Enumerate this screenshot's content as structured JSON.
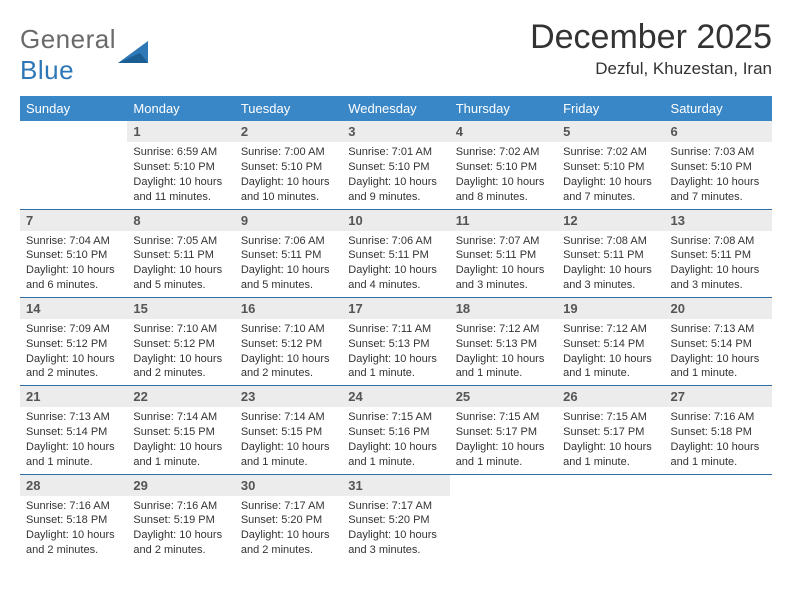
{
  "logo": {
    "word1": "General",
    "word2": "Blue"
  },
  "title": "December 2025",
  "location": "Dezful, Khuzestan, Iran",
  "colors": {
    "header_bg": "#3a87c7",
    "header_text": "#ffffff",
    "daynum_bg": "#ececec",
    "daynum_text": "#555555",
    "divider": "#2f6fa3",
    "logo_gray": "#6a6a6a",
    "logo_blue": "#2f78b7"
  },
  "weekdays": [
    "Sunday",
    "Monday",
    "Tuesday",
    "Wednesday",
    "Thursday",
    "Friday",
    "Saturday"
  ],
  "weeks": [
    [
      {
        "empty": true
      },
      {
        "n": "1",
        "sr": "Sunrise: 6:59 AM",
        "ss": "Sunset: 5:10 PM",
        "dl": "Daylight: 10 hours and 11 minutes."
      },
      {
        "n": "2",
        "sr": "Sunrise: 7:00 AM",
        "ss": "Sunset: 5:10 PM",
        "dl": "Daylight: 10 hours and 10 minutes."
      },
      {
        "n": "3",
        "sr": "Sunrise: 7:01 AM",
        "ss": "Sunset: 5:10 PM",
        "dl": "Daylight: 10 hours and 9 minutes."
      },
      {
        "n": "4",
        "sr": "Sunrise: 7:02 AM",
        "ss": "Sunset: 5:10 PM",
        "dl": "Daylight: 10 hours and 8 minutes."
      },
      {
        "n": "5",
        "sr": "Sunrise: 7:02 AM",
        "ss": "Sunset: 5:10 PM",
        "dl": "Daylight: 10 hours and 7 minutes."
      },
      {
        "n": "6",
        "sr": "Sunrise: 7:03 AM",
        "ss": "Sunset: 5:10 PM",
        "dl": "Daylight: 10 hours and 7 minutes."
      }
    ],
    [
      {
        "n": "7",
        "sr": "Sunrise: 7:04 AM",
        "ss": "Sunset: 5:10 PM",
        "dl": "Daylight: 10 hours and 6 minutes."
      },
      {
        "n": "8",
        "sr": "Sunrise: 7:05 AM",
        "ss": "Sunset: 5:11 PM",
        "dl": "Daylight: 10 hours and 5 minutes."
      },
      {
        "n": "9",
        "sr": "Sunrise: 7:06 AM",
        "ss": "Sunset: 5:11 PM",
        "dl": "Daylight: 10 hours and 5 minutes."
      },
      {
        "n": "10",
        "sr": "Sunrise: 7:06 AM",
        "ss": "Sunset: 5:11 PM",
        "dl": "Daylight: 10 hours and 4 minutes."
      },
      {
        "n": "11",
        "sr": "Sunrise: 7:07 AM",
        "ss": "Sunset: 5:11 PM",
        "dl": "Daylight: 10 hours and 3 minutes."
      },
      {
        "n": "12",
        "sr": "Sunrise: 7:08 AM",
        "ss": "Sunset: 5:11 PM",
        "dl": "Daylight: 10 hours and 3 minutes."
      },
      {
        "n": "13",
        "sr": "Sunrise: 7:08 AM",
        "ss": "Sunset: 5:11 PM",
        "dl": "Daylight: 10 hours and 3 minutes."
      }
    ],
    [
      {
        "n": "14",
        "sr": "Sunrise: 7:09 AM",
        "ss": "Sunset: 5:12 PM",
        "dl": "Daylight: 10 hours and 2 minutes."
      },
      {
        "n": "15",
        "sr": "Sunrise: 7:10 AM",
        "ss": "Sunset: 5:12 PM",
        "dl": "Daylight: 10 hours and 2 minutes."
      },
      {
        "n": "16",
        "sr": "Sunrise: 7:10 AM",
        "ss": "Sunset: 5:12 PM",
        "dl": "Daylight: 10 hours and 2 minutes."
      },
      {
        "n": "17",
        "sr": "Sunrise: 7:11 AM",
        "ss": "Sunset: 5:13 PM",
        "dl": "Daylight: 10 hours and 1 minute."
      },
      {
        "n": "18",
        "sr": "Sunrise: 7:12 AM",
        "ss": "Sunset: 5:13 PM",
        "dl": "Daylight: 10 hours and 1 minute."
      },
      {
        "n": "19",
        "sr": "Sunrise: 7:12 AM",
        "ss": "Sunset: 5:14 PM",
        "dl": "Daylight: 10 hours and 1 minute."
      },
      {
        "n": "20",
        "sr": "Sunrise: 7:13 AM",
        "ss": "Sunset: 5:14 PM",
        "dl": "Daylight: 10 hours and 1 minute."
      }
    ],
    [
      {
        "n": "21",
        "sr": "Sunrise: 7:13 AM",
        "ss": "Sunset: 5:14 PM",
        "dl": "Daylight: 10 hours and 1 minute."
      },
      {
        "n": "22",
        "sr": "Sunrise: 7:14 AM",
        "ss": "Sunset: 5:15 PM",
        "dl": "Daylight: 10 hours and 1 minute."
      },
      {
        "n": "23",
        "sr": "Sunrise: 7:14 AM",
        "ss": "Sunset: 5:15 PM",
        "dl": "Daylight: 10 hours and 1 minute."
      },
      {
        "n": "24",
        "sr": "Sunrise: 7:15 AM",
        "ss": "Sunset: 5:16 PM",
        "dl": "Daylight: 10 hours and 1 minute."
      },
      {
        "n": "25",
        "sr": "Sunrise: 7:15 AM",
        "ss": "Sunset: 5:17 PM",
        "dl": "Daylight: 10 hours and 1 minute."
      },
      {
        "n": "26",
        "sr": "Sunrise: 7:15 AM",
        "ss": "Sunset: 5:17 PM",
        "dl": "Daylight: 10 hours and 1 minute."
      },
      {
        "n": "27",
        "sr": "Sunrise: 7:16 AM",
        "ss": "Sunset: 5:18 PM",
        "dl": "Daylight: 10 hours and 1 minute."
      }
    ],
    [
      {
        "n": "28",
        "sr": "Sunrise: 7:16 AM",
        "ss": "Sunset: 5:18 PM",
        "dl": "Daylight: 10 hours and 2 minutes."
      },
      {
        "n": "29",
        "sr": "Sunrise: 7:16 AM",
        "ss": "Sunset: 5:19 PM",
        "dl": "Daylight: 10 hours and 2 minutes."
      },
      {
        "n": "30",
        "sr": "Sunrise: 7:17 AM",
        "ss": "Sunset: 5:20 PM",
        "dl": "Daylight: 10 hours and 2 minutes."
      },
      {
        "n": "31",
        "sr": "Sunrise: 7:17 AM",
        "ss": "Sunset: 5:20 PM",
        "dl": "Daylight: 10 hours and 3 minutes."
      },
      {
        "empty": true
      },
      {
        "empty": true
      },
      {
        "empty": true
      }
    ]
  ]
}
